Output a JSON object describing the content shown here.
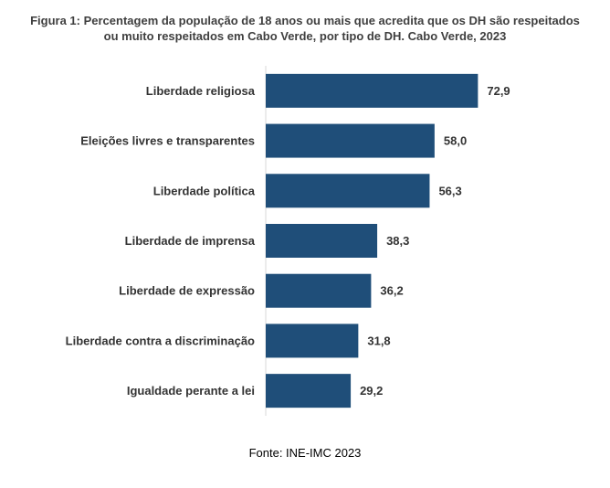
{
  "chart_data": {
    "type": "bar",
    "orientation": "horizontal",
    "title_line1": "Figura 1: Percentagem da população de 18 anos ou mais que acredita que os DH são respeitados",
    "title_line2": "ou muito respeitados em Cabo Verde, por tipo de DH. Cabo Verde, 2023",
    "categories": [
      "Liberdade religiosa",
      "Eleições livres e transparentes",
      "Liberdade política",
      "Liberdade de imprensa",
      "Liberdade de expressão",
      "Liberdade contra a discriminação",
      "Igualdade perante a lei"
    ],
    "values": [
      72.9,
      58.0,
      56.3,
      38.3,
      36.2,
      31.8,
      29.2
    ],
    "value_labels": [
      "72,9",
      "58,0",
      "56,3",
      "38,3",
      "36,2",
      "31,8",
      "29,2"
    ],
    "xlim": [
      0,
      80
    ],
    "grid": false,
    "bar_color": "#1f4e79",
    "axis_color": "#d9d9d9"
  },
  "source": "Fonte: INE-IMC 2023"
}
